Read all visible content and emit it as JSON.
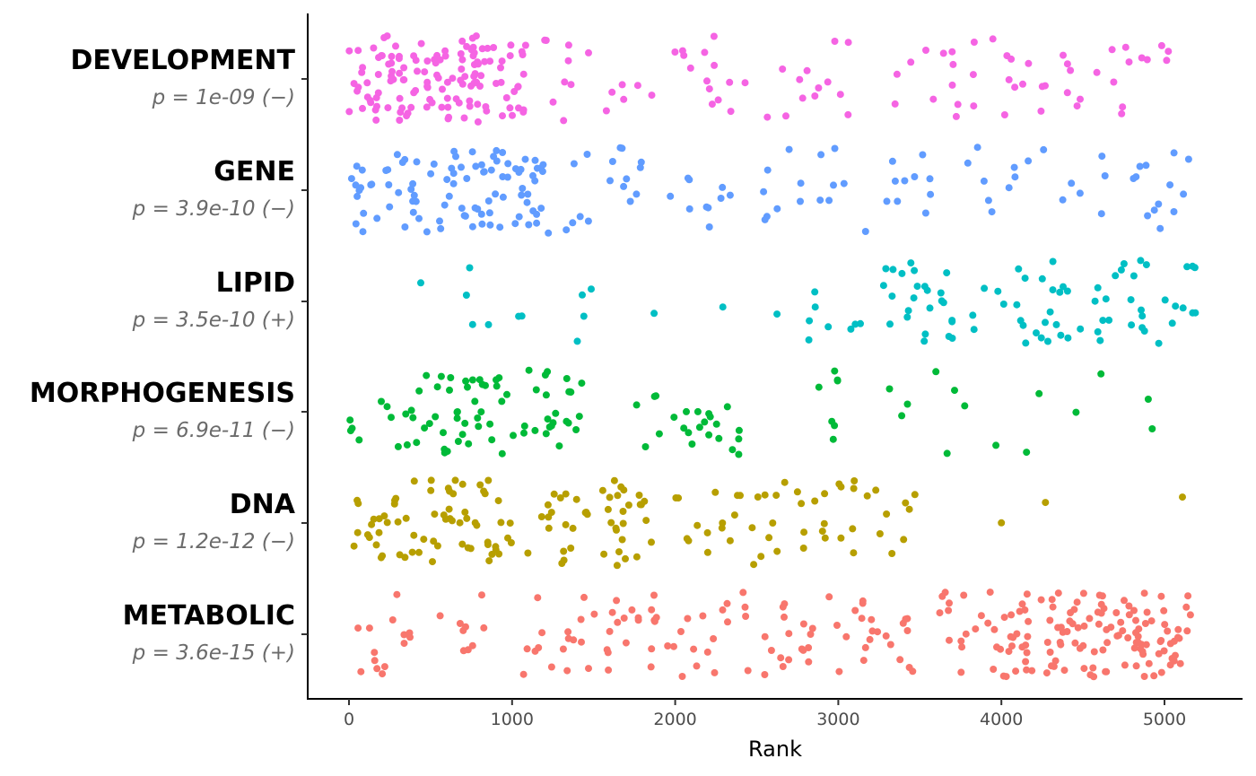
{
  "chart_data": {
    "type": "scatter",
    "title": "",
    "xlabel": "Rank",
    "ylabel": "",
    "xlim": [
      -250,
      5350
    ],
    "x_ticks": [
      "0",
      "1000",
      "2000",
      "3000",
      "4000",
      "5000"
    ],
    "grid": false,
    "legend": "none",
    "series": [
      {
        "name": "DEVELOPMENT",
        "pvalue_text": "p = 1e-09 (−)",
        "color": "#F564E3",
        "n_points": 220,
        "rank_range": [
          0,
          5100
        ],
        "distribution": "dense 0-1100, moderate 1100-4300, sparse 4300-5100"
      },
      {
        "name": "GENE",
        "pvalue_text": "p = 3.9e-10 (−)",
        "color": "#619CFF",
        "n_points": 175,
        "rank_range": [
          0,
          5210
        ],
        "distribution": "dense 0-1200, moderate 1200-5210"
      },
      {
        "name": "LIPID",
        "pvalue_text": "p = 3.5e-10 (+)",
        "color": "#00BFC4",
        "n_points": 95,
        "rank_range": [
          440,
          5200
        ],
        "distribution": "sparse before 2800, dense 3200-5200"
      },
      {
        "name": "MORPHOGENESIS",
        "pvalue_text": "p = 6.9e-11 (−)",
        "color": "#00BA38",
        "n_points": 120,
        "rank_range": [
          0,
          4950
        ],
        "distribution": "dense 0-1450, clusters near 2100-2450 and 2800-3000, sparse beyond"
      },
      {
        "name": "DNA",
        "pvalue_text": "p = 1.2e-12 (−)",
        "color": "#B79F00",
        "n_points": 160,
        "rank_range": [
          0,
          5110
        ],
        "distribution": "dense 0-1800, moderate 1800-3550, three outliers near 4000, 4270, 5110"
      },
      {
        "name": "METABOLIC",
        "pvalue_text": "p = 3.6e-15 (+)",
        "color": "#F8766D",
        "n_points": 260,
        "rank_range": [
          0,
          5200
        ],
        "distribution": "sparse 0-1000, moderate 1000-3900, dense 3900-5200"
      }
    ]
  }
}
